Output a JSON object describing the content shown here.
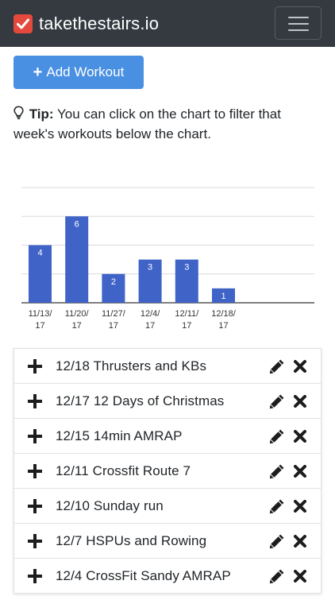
{
  "navbar": {
    "brand_text": "takethestairs.io",
    "menu_icon": "hamburger-icon",
    "logo_icon": "checkbox-icon",
    "logo_color": "#e5493e",
    "background": "#343a40"
  },
  "actions": {
    "add_workout_label": "Add Workout",
    "add_workout_icon": "plus-icon",
    "button_color": "#4a90e2"
  },
  "tip": {
    "icon": "lightbulb-icon",
    "label": "Tip:",
    "text": "You can click on the chart to filter that week's workouts below the chart."
  },
  "chart_data": {
    "type": "bar",
    "categories": [
      "11/13/17",
      "11/20/17",
      "11/27/17",
      "12/4/17",
      "12/11/17",
      "12/18/17"
    ],
    "category_lines": [
      [
        "11/13/",
        "17"
      ],
      [
        "11/20/",
        "17"
      ],
      [
        "11/27/",
        "17"
      ],
      [
        "12/4/",
        "17"
      ],
      [
        "12/11/",
        "17"
      ],
      [
        "12/18/",
        "17"
      ]
    ],
    "values": [
      4,
      6,
      2,
      3,
      3,
      1
    ],
    "ylim": [
      0,
      8
    ],
    "grid": true,
    "bar_color": "#3f63c7"
  },
  "workouts": [
    {
      "title": "12/18 Thrusters and KBs"
    },
    {
      "title": "12/17 12 Days of Christmas"
    },
    {
      "title": "12/15 14min AMRAP"
    },
    {
      "title": "12/11 Crossfit Route 7"
    },
    {
      "title": "12/10 Sunday run"
    },
    {
      "title": "12/7 HSPUs and Rowing"
    },
    {
      "title": "12/4 CrossFit Sandy AMRAP"
    }
  ],
  "workout_icons": {
    "expand": "plus-icon",
    "edit": "pencil-icon",
    "delete": "x-icon"
  }
}
